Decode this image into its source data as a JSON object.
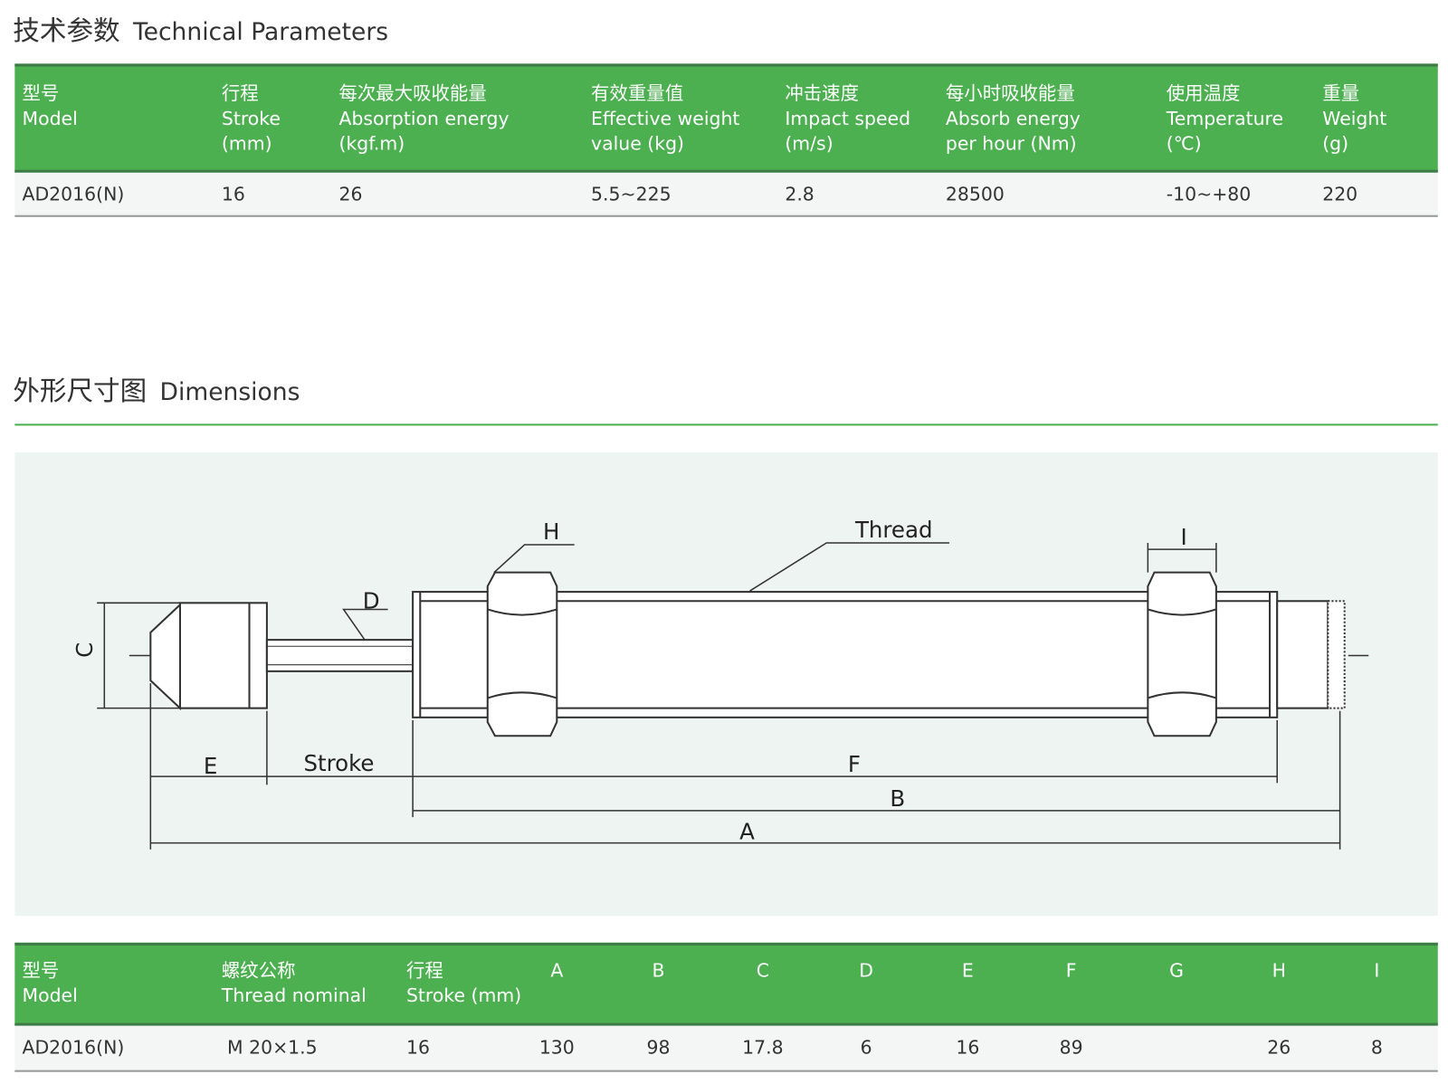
{
  "section1": {
    "title_cn": "技术参数",
    "title_en": "Technical Parameters"
  },
  "table1": {
    "headers": [
      "型号\nModel",
      "行程\nStroke\n(mm)",
      "每次最大吸收能量\nAbsorption energy\n(kgf.m)",
      "有效重量值\nEffective weight\nvalue (kg)",
      "冲击速度\nImpact speed\n(m/s)",
      "每小时吸收能量\nAbsorb energy\nper hour (Nm)",
      "使用温度\nTemperature\n(℃)",
      "重量\nWeight\n(g)"
    ],
    "row": [
      "AD2016(N)",
      "16",
      "26",
      "5.5~225",
      "2.8",
      "28500",
      "-10~+80",
      "220"
    ]
  },
  "section2": {
    "title_cn": "外形尺寸图",
    "title_en": "Dimensions"
  },
  "drawing": {
    "labels": {
      "H": "H",
      "Thread": "Thread",
      "I": "I",
      "D": "D",
      "C": "C",
      "E": "E",
      "Stroke": "Stroke",
      "F": "F",
      "B": "B",
      "A": "A"
    }
  },
  "table2": {
    "headers": [
      "型号\nModel",
      "螺纹公称\nThread nominal",
      "行程\nStroke (mm)",
      "A",
      "B",
      "C",
      "D",
      "E",
      "F",
      "G",
      "H",
      "I"
    ],
    "row": [
      "AD2016(N)",
      "M 20×1.5",
      "16",
      "130",
      "98",
      "17.8",
      "6",
      "16",
      "89",
      "",
      "26",
      "8"
    ]
  },
  "colors": {
    "header_green": "#4caf50",
    "row_bg": "#f3f6f5",
    "drawing_bg": "#eef4f1"
  }
}
